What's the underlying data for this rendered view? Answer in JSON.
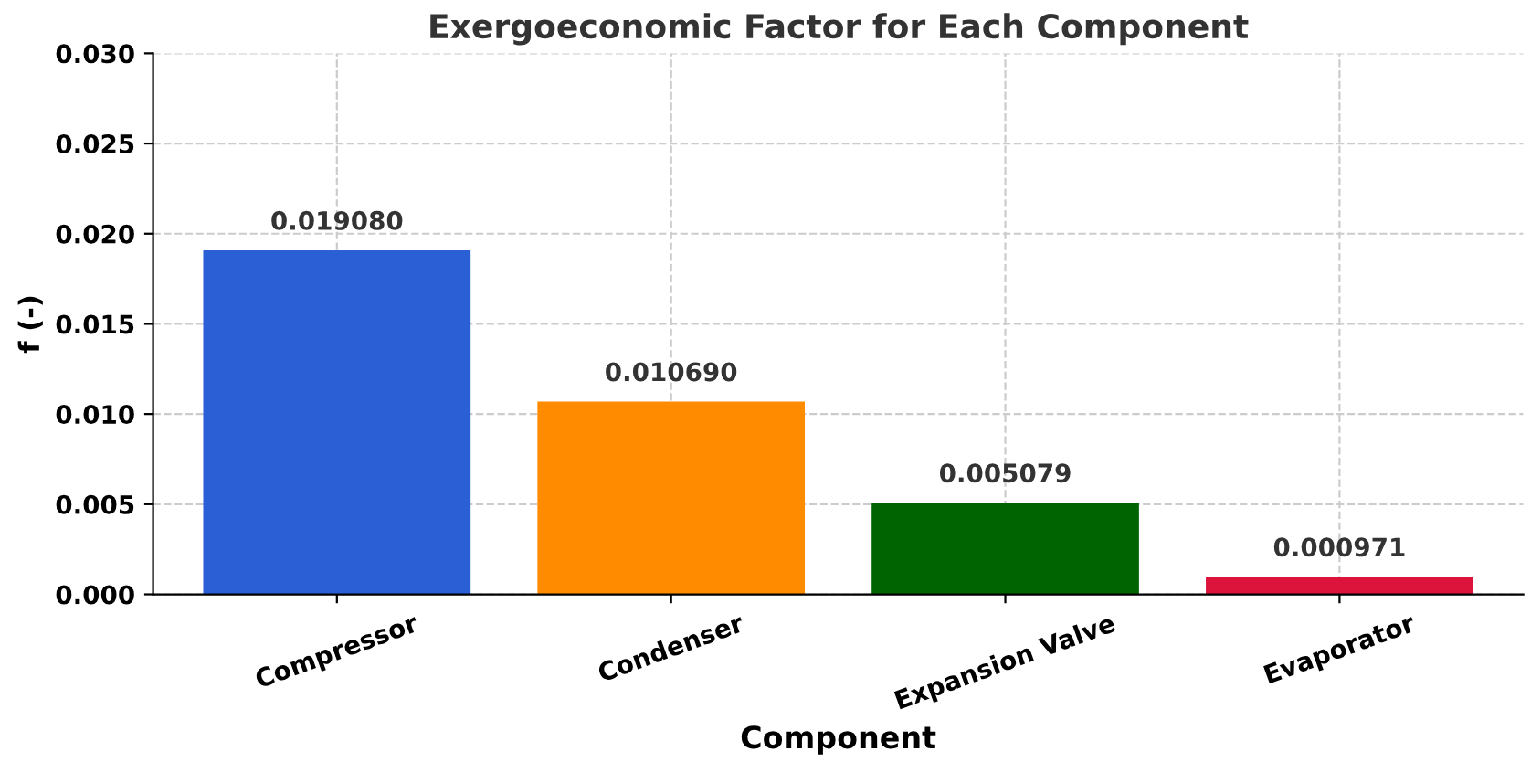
{
  "chart_data": {
    "type": "bar",
    "title": "Exergoeconomic Factor for Each Component",
    "xlabel": "Component",
    "ylabel": "f (-)",
    "categories": [
      "Compressor",
      "Condenser",
      "Expansion Valve",
      "Evaporator"
    ],
    "values": [
      0.01908,
      0.01069,
      0.005079,
      0.000971
    ],
    "colors": [
      "#2a5fd6",
      "#ff8c00",
      "#006400",
      "#dc143c"
    ],
    "value_labels": [
      "0.019080",
      "0.010690",
      "0.005079",
      "0.000971"
    ],
    "ylim": [
      0,
      0.03
    ],
    "yticks": [
      {
        "value": 0,
        "label": "0.000"
      },
      {
        "value": 0.005,
        "label": "0.005"
      },
      {
        "value": 0.01,
        "label": "0.010"
      },
      {
        "value": 0.015,
        "label": "0.015"
      },
      {
        "value": 0.02,
        "label": "0.020"
      },
      {
        "value": 0.025,
        "label": "0.025"
      },
      {
        "value": 0.03,
        "label": "0.030"
      }
    ],
    "grid": true
  }
}
